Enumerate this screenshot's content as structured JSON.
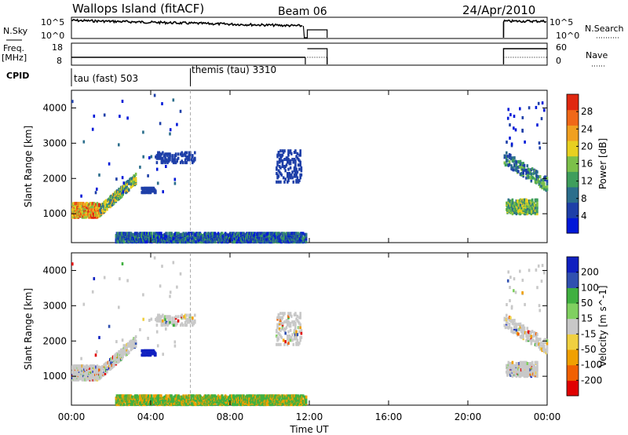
{
  "header": {
    "station": "Wallops Island (fitACF)",
    "beam": "Beam 06",
    "date": "24/Apr/2010"
  },
  "status_panels": {
    "nsky_label": "N.Sky",
    "nsky_ticks": [
      "10^5",
      "10^0"
    ],
    "nsearch_label": "N.Search",
    "nsearch_ticks": [
      "10^5",
      "10^0"
    ],
    "freq_label_1": "Freq.",
    "freq_label_2": "[MHz]",
    "freq_ticks": [
      "18",
      "8"
    ],
    "nave_label": "Nave",
    "nave_ticks": [
      "60",
      "0"
    ],
    "cpid_label": "CPID",
    "cpid_modes": [
      {
        "name": "tau (fast) 503",
        "start_hour": 0,
        "end_hour": 6
      },
      {
        "name": "themis (tau) 3310",
        "start_hour": 6,
        "end_hour": 24
      }
    ],
    "freq_mhz": 10,
    "nave": 15,
    "nave_high": 28
  },
  "colors": {
    "power_scale": [
      "#0018d8",
      "#1e3fa8",
      "#2b6e8c",
      "#3f9e5c",
      "#7cc04a",
      "#e8d020",
      "#f0a020",
      "#f06818",
      "#e02810"
    ],
    "velocity_scale": [
      "#e00000",
      "#f06000",
      "#f0a000",
      "#f0d040",
      "#c8c8c8",
      "#80d060",
      "#40b040",
      "#3050b0",
      "#1020c0"
    ]
  },
  "chart_data": [
    {
      "type": "heatmap",
      "name": "power",
      "ylabel": "Slant Range [km]",
      "xlabel": "Time UT",
      "x_ticks": [
        "00:00",
        "04:00",
        "08:00",
        "12:00",
        "16:00",
        "20:00",
        "00:00"
      ],
      "x_range_hours": [
        0,
        24
      ],
      "y_range_km": [
        180,
        4500
      ],
      "y_ticks": [
        1000,
        2000,
        3000,
        4000
      ],
      "colorbar_label": "Power [dB]",
      "colorbar_ticks": [
        4,
        8,
        12,
        16,
        20,
        24,
        28
      ],
      "colorbar_range": [
        0,
        32
      ],
      "data_gaps_hours": [
        [
          11.8,
          21.8
        ]
      ],
      "cpid_change_hour": 6.0
    },
    {
      "type": "heatmap",
      "name": "velocity",
      "ylabel": "Slant Range [km]",
      "xlabel": "Time UT",
      "x_ticks": [
        "00:00",
        "04:00",
        "08:00",
        "12:00",
        "16:00",
        "20:00",
        "00:00"
      ],
      "x_range_hours": [
        0,
        24
      ],
      "y_range_km": [
        180,
        4500
      ],
      "y_ticks": [
        1000,
        2000,
        3000,
        4000
      ],
      "colorbar_label": "Velocity [m s^-1]",
      "colorbar_ticks": [
        -200,
        -100,
        -50,
        -15,
        15,
        50,
        100,
        200
      ],
      "data_gaps_hours": [
        [
          11.8,
          21.8
        ]
      ],
      "cpid_change_hour": 6.0
    }
  ],
  "footer": {
    "time_label": "Time UT"
  }
}
